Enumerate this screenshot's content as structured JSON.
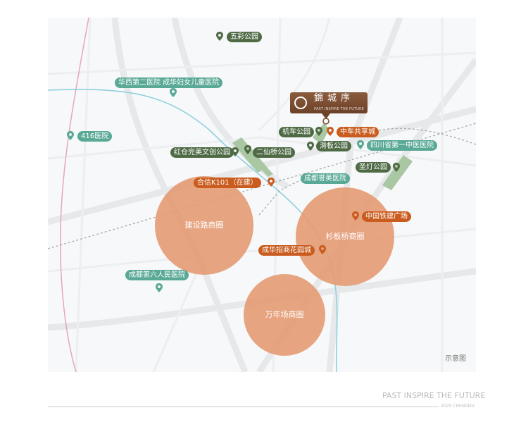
{
  "colors": {
    "hospital": "#5aa996",
    "park": "#4f6b46",
    "commercial": "#c95c1e",
    "district_circle": "#e49a72",
    "river": "#8fd0df",
    "brand": "#7a4c31"
  },
  "brand": {
    "name": "錦城序",
    "tagline": "PAST INSPIRE THE FUTURE"
  },
  "labels": {
    "wucai": "五彩公园",
    "huaxi": "华西第二医院 成华妇女儿童医院",
    "h416": "416医院",
    "jiche": "机车公园",
    "zhongche": "中车共享城",
    "huaban": "滑板公园",
    "sichuan": "四川省第一中医医院",
    "hongcang": "红仓完美文创公园",
    "erxianqiao": "二仙桥公园",
    "yumei": "成都誉美医院",
    "shengdeng": "圣灯公园",
    "hexin": "合信K101（在建）",
    "tiejian": "中国铁建广场",
    "zhaoshang": "成华招商花园城",
    "diliu": "成都第六人民医院"
  },
  "districts": {
    "jiansheLu": "建设路商圈",
    "shanbanqiao": "杉板桥商圈",
    "wannianchang": "万年场商圈"
  },
  "note": "示意图",
  "footer": {
    "slogan": "PAST INSPIRE THE FUTURE",
    "year": "2025 CHENGDU"
  }
}
